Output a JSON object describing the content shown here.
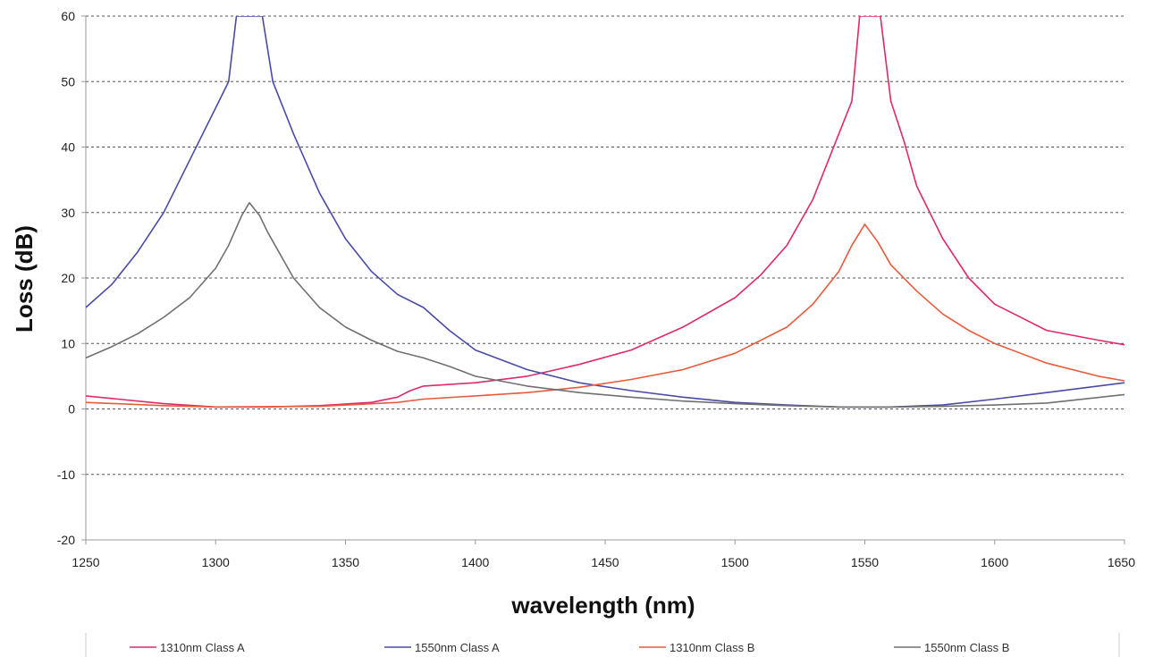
{
  "chart_data": {
    "type": "line",
    "title": "",
    "xlabel": "wavelength (nm)",
    "ylabel": "Loss (dB)",
    "xlim": [
      1250,
      1650
    ],
    "ylim": [
      -20,
      60
    ],
    "x_ticks": [
      "1250",
      "1300",
      "1350",
      "1400",
      "1450",
      "1500",
      "1550",
      "1600",
      "1650"
    ],
    "y_ticks": [
      "60",
      "50",
      "40",
      "30",
      "20",
      "10",
      "0",
      "-10",
      "-20"
    ],
    "grid": "horizontal dashed",
    "legend_position": "bottom",
    "series": [
      {
        "name": "1310nm Class A",
        "color": "#e0286a",
        "points": [
          [
            1250,
            2.0
          ],
          [
            1280,
            0.8
          ],
          [
            1300,
            0.3
          ],
          [
            1320,
            0.3
          ],
          [
            1340,
            0.5
          ],
          [
            1360,
            1.0
          ],
          [
            1370,
            1.8
          ],
          [
            1375,
            2.8
          ],
          [
            1380,
            3.5
          ],
          [
            1400,
            4.0
          ],
          [
            1420,
            5.0
          ],
          [
            1440,
            6.8
          ],
          [
            1460,
            9.0
          ],
          [
            1480,
            12.5
          ],
          [
            1500,
            17.0
          ],
          [
            1510,
            20.5
          ],
          [
            1520,
            25.0
          ],
          [
            1530,
            32.0
          ],
          [
            1540,
            42.0
          ],
          [
            1545,
            47.0
          ],
          [
            1548,
            60.0
          ],
          [
            1556,
            60.0
          ],
          [
            1560,
            47.0
          ],
          [
            1565,
            41.0
          ],
          [
            1570,
            34.0
          ],
          [
            1580,
            26.0
          ],
          [
            1590,
            20.0
          ],
          [
            1600,
            16.0
          ],
          [
            1620,
            12.0
          ],
          [
            1640,
            10.5
          ],
          [
            1650,
            9.8
          ]
        ]
      },
      {
        "name": "1550nm Class A",
        "color": "#4a4aa8",
        "points": [
          [
            1250,
            15.5
          ],
          [
            1260,
            19.0
          ],
          [
            1270,
            24.0
          ],
          [
            1280,
            30.0
          ],
          [
            1290,
            38.0
          ],
          [
            1300,
            46.0
          ],
          [
            1305,
            50.0
          ],
          [
            1308,
            60.0
          ],
          [
            1318,
            60.0
          ],
          [
            1322,
            50.0
          ],
          [
            1330,
            42.0
          ],
          [
            1340,
            33.0
          ],
          [
            1350,
            26.0
          ],
          [
            1360,
            21.0
          ],
          [
            1370,
            17.5
          ],
          [
            1380,
            15.5
          ],
          [
            1390,
            12.0
          ],
          [
            1400,
            9.0
          ],
          [
            1420,
            6.0
          ],
          [
            1440,
            4.0
          ],
          [
            1460,
            2.8
          ],
          [
            1480,
            1.8
          ],
          [
            1500,
            1.0
          ],
          [
            1520,
            0.6
          ],
          [
            1540,
            0.3
          ],
          [
            1560,
            0.3
          ],
          [
            1580,
            0.6
          ],
          [
            1600,
            1.5
          ],
          [
            1620,
            2.5
          ],
          [
            1650,
            4.0
          ]
        ]
      },
      {
        "name": "1310nm Class B",
        "color": "#e85a3c",
        "points": [
          [
            1250,
            1.0
          ],
          [
            1280,
            0.5
          ],
          [
            1300,
            0.3
          ],
          [
            1340,
            0.4
          ],
          [
            1370,
            1.0
          ],
          [
            1380,
            1.5
          ],
          [
            1400,
            2.0
          ],
          [
            1420,
            2.5
          ],
          [
            1440,
            3.3
          ],
          [
            1460,
            4.5
          ],
          [
            1480,
            6.0
          ],
          [
            1500,
            8.5
          ],
          [
            1520,
            12.5
          ],
          [
            1530,
            16.0
          ],
          [
            1540,
            21.0
          ],
          [
            1545,
            25.0
          ],
          [
            1550,
            28.2
          ],
          [
            1555,
            25.5
          ],
          [
            1560,
            22.0
          ],
          [
            1570,
            18.0
          ],
          [
            1580,
            14.5
          ],
          [
            1590,
            12.0
          ],
          [
            1600,
            10.0
          ],
          [
            1620,
            7.0
          ],
          [
            1640,
            5.0
          ],
          [
            1650,
            4.3
          ]
        ]
      },
      {
        "name": "1550nm Class B",
        "color": "#707070",
        "points": [
          [
            1250,
            7.8
          ],
          [
            1260,
            9.5
          ],
          [
            1270,
            11.5
          ],
          [
            1280,
            14.0
          ],
          [
            1290,
            17.0
          ],
          [
            1300,
            21.5
          ],
          [
            1305,
            25.0
          ],
          [
            1310,
            29.5
          ],
          [
            1313,
            31.5
          ],
          [
            1317,
            29.5
          ],
          [
            1320,
            27.0
          ],
          [
            1330,
            20.0
          ],
          [
            1340,
            15.5
          ],
          [
            1350,
            12.5
          ],
          [
            1360,
            10.5
          ],
          [
            1370,
            8.8
          ],
          [
            1380,
            7.8
          ],
          [
            1390,
            6.5
          ],
          [
            1400,
            5.0
          ],
          [
            1420,
            3.5
          ],
          [
            1440,
            2.5
          ],
          [
            1460,
            1.8
          ],
          [
            1480,
            1.2
          ],
          [
            1500,
            0.8
          ],
          [
            1520,
            0.5
          ],
          [
            1540,
            0.3
          ],
          [
            1560,
            0.3
          ],
          [
            1580,
            0.4
          ],
          [
            1600,
            0.6
          ],
          [
            1620,
            0.9
          ],
          [
            1650,
            2.2
          ]
        ]
      }
    ]
  }
}
